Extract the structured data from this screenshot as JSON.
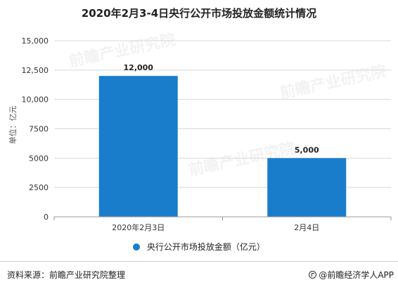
{
  "page": {
    "title": "2020年2月3-4日央行公开市场投放金额统计情况",
    "footer_source": "资料来源：前瞻产业研究院整理",
    "footer_brand": "@前瞻经济学人APP",
    "watermark_text": "前瞻产业研究院",
    "brand_icon": "qianzhan-logo-icon"
  },
  "chart_data": {
    "type": "bar",
    "title": "2020年2月3-4日央行公开市场投放金额统计情况",
    "xlabel": "",
    "ylabel": "单位：亿元",
    "categories": [
      "2020年2月3日",
      "2月4日"
    ],
    "series": [
      {
        "name": "央行公开市场投放金额（亿元）",
        "values": [
          12000,
          5000
        ],
        "color": "#1a7dcb"
      }
    ],
    "data_labels": [
      "12,000",
      "5,000"
    ],
    "yticks": [
      0,
      2500,
      5000,
      7500,
      10000,
      12500,
      15000
    ],
    "ytick_labels": [
      "0",
      "2500",
      "5000",
      "7500",
      "10,000",
      "12,500",
      "15,000"
    ],
    "ylim": [
      0,
      15000
    ],
    "grid": true,
    "legend_position": "bottom"
  }
}
